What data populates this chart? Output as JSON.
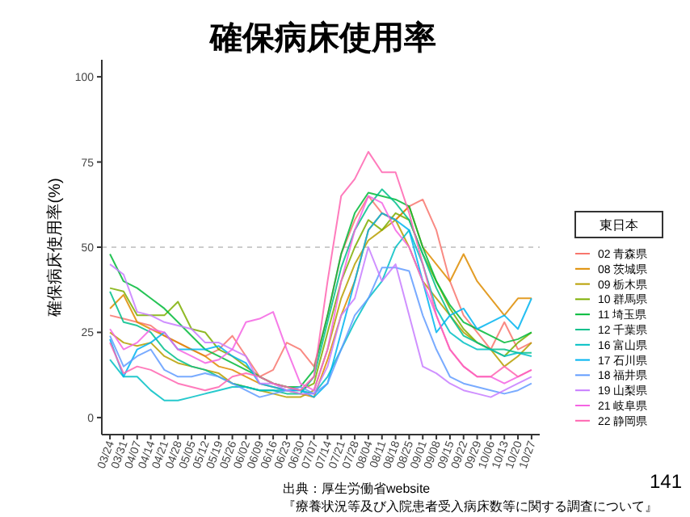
{
  "chart_data": {
    "type": "line",
    "title": "確保病床使用率",
    "ylabel": "確保病床使用率(%)",
    "legend_title": "東日本",
    "legend": "right",
    "grid": false,
    "marker": "none",
    "line_style": "solid",
    "categories": [
      "03/24",
      "03/31",
      "04/07",
      "04/14",
      "04/21",
      "04/28",
      "05/05",
      "05/12",
      "05/19",
      "05/26",
      "06/02",
      "06/09",
      "06/16",
      "06/23",
      "06/30",
      "07/07",
      "07/14",
      "07/21",
      "07/28",
      "08/04",
      "08/11",
      "08/18",
      "08/25",
      "09/01",
      "09/08",
      "09/15",
      "09/22",
      "09/29",
      "10/06",
      "10/13",
      "10/20",
      "10/27"
    ],
    "ylim": [
      -5,
      105
    ],
    "yticks": [
      0,
      25,
      50,
      75,
      100
    ],
    "ref_lines": [
      {
        "axis": "y",
        "value": 50,
        "color": "#cccccc",
        "line_style": "dashed"
      }
    ],
    "annotations": [
      "出典：厚生労働省website",
      "『療養状況等及び入院患者受入病床数等に関する調査について』",
      "141"
    ],
    "series": [
      {
        "name": "02 青森県",
        "color": "#F8766D",
        "values": [
          30,
          29,
          28,
          27,
          24,
          22,
          20,
          18,
          20,
          24,
          18,
          12,
          14,
          22,
          20,
          15,
          30,
          48,
          58,
          65,
          60,
          58,
          62,
          64,
          55,
          40,
          30,
          25,
          20,
          28,
          20,
          22
        ]
      },
      {
        "name": "08 茨城県",
        "color": "#DE8C00",
        "values": [
          32,
          36,
          28,
          26,
          24,
          22,
          20,
          18,
          15,
          14,
          12,
          10,
          9,
          8,
          7,
          6,
          17,
          30,
          40,
          55,
          60,
          58,
          62,
          50,
          45,
          40,
          48,
          40,
          35,
          30,
          35,
          35
        ]
      },
      {
        "name": "09 栃木県",
        "color": "#B79F00",
        "values": [
          25,
          22,
          21,
          22,
          18,
          16,
          15,
          14,
          13,
          10,
          9,
          8,
          7,
          6,
          6,
          8,
          20,
          35,
          45,
          52,
          55,
          58,
          50,
          40,
          35,
          30,
          25,
          22,
          20,
          15,
          18,
          22
        ]
      },
      {
        "name": "10 群馬県",
        "color": "#7CAE00",
        "values": [
          38,
          37,
          30,
          30,
          30,
          34,
          26,
          25,
          20,
          18,
          15,
          12,
          10,
          9,
          8,
          10,
          25,
          40,
          50,
          58,
          55,
          60,
          58,
          48,
          40,
          32,
          26,
          22,
          20,
          18,
          22,
          25
        ]
      },
      {
        "name": "11 埼玉県",
        "color": "#00BA38",
        "values": [
          48,
          40,
          38,
          35,
          32,
          28,
          24,
          20,
          18,
          16,
          14,
          12,
          10,
          9,
          9,
          14,
          30,
          48,
          60,
          66,
          65,
          64,
          62,
          50,
          40,
          33,
          28,
          26,
          24,
          22,
          23,
          25
        ]
      },
      {
        "name": "12 千葉県",
        "color": "#00C08B",
        "values": [
          37,
          28,
          27,
          25,
          20,
          17,
          15,
          14,
          12,
          10,
          9,
          8,
          8,
          7,
          7,
          12,
          28,
          44,
          55,
          62,
          67,
          63,
          58,
          48,
          38,
          30,
          24,
          22,
          20,
          20,
          19,
          19
        ]
      },
      {
        "name": "16 富山県",
        "color": "#00BFC4",
        "values": [
          17,
          12,
          12,
          8,
          5,
          5,
          6,
          7,
          8,
          9,
          9,
          8,
          8,
          8,
          8,
          7,
          12,
          20,
          28,
          35,
          40,
          50,
          55,
          45,
          32,
          25,
          22,
          20,
          20,
          18,
          19,
          18
        ]
      },
      {
        "name": "17 石川県",
        "color": "#00B4F0",
        "values": [
          23,
          12,
          20,
          22,
          25,
          20,
          20,
          20,
          21,
          18,
          16,
          10,
          9,
          8,
          8,
          6,
          10,
          25,
          40,
          55,
          60,
          58,
          55,
          40,
          25,
          30,
          32,
          26,
          28,
          30,
          26,
          35
        ]
      },
      {
        "name": "18 福井県",
        "color": "#619CFF",
        "values": [
          24,
          15,
          18,
          20,
          14,
          12,
          12,
          13,
          12,
          10,
          8,
          6,
          7,
          8,
          9,
          7,
          10,
          20,
          30,
          35,
          44,
          44,
          43,
          30,
          20,
          12,
          10,
          9,
          8,
          7,
          8,
          10
        ]
      },
      {
        "name": "19 山梨県",
        "color": "#C77CFF",
        "values": [
          45,
          42,
          31,
          30,
          28,
          27,
          26,
          22,
          22,
          20,
          18,
          10,
          10,
          8,
          7,
          7,
          15,
          30,
          35,
          50,
          40,
          45,
          30,
          15,
          13,
          10,
          8,
          7,
          6,
          8,
          10,
          12
        ]
      },
      {
        "name": "21 岐阜県",
        "color": "#F564E3",
        "values": [
          26,
          20,
          22,
          26,
          25,
          20,
          18,
          16,
          17,
          20,
          28,
          29,
          31,
          20,
          10,
          8,
          20,
          40,
          55,
          65,
          63,
          55,
          50,
          40,
          30,
          20,
          15,
          12,
          12,
          10,
          12,
          14
        ]
      },
      {
        "name": "22 静岡県",
        "color": "#FF64B0",
        "values": [
          22,
          13,
          15,
          14,
          12,
          10,
          9,
          8,
          9,
          12,
          13,
          12,
          10,
          9,
          8,
          12,
          40,
          65,
          70,
          78,
          72,
          72,
          60,
          45,
          30,
          20,
          15,
          12,
          12,
          15,
          12,
          14
        ]
      }
    ]
  }
}
